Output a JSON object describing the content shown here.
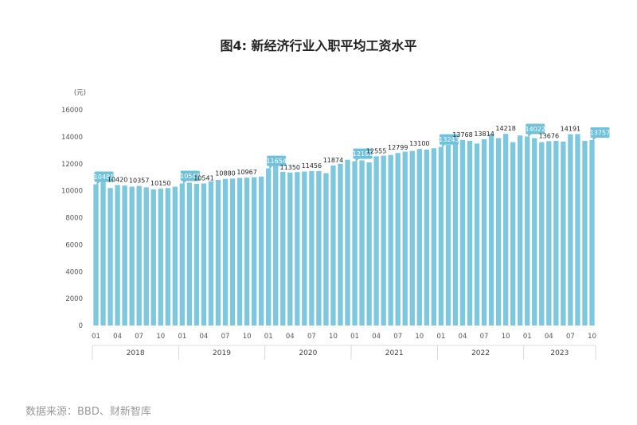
{
  "chart_data": {
    "type": "bar",
    "title": "图4: 新经济行业入职平均工资水平",
    "ylabel": "(元)",
    "xlabel": "",
    "ylim": [
      0,
      16000
    ],
    "yticks": [
      0,
      2000,
      4000,
      6000,
      8000,
      10000,
      12000,
      14000,
      16000
    ],
    "grid": false,
    "bar_color": "#7dc8de",
    "callout_color": "#6fc2da",
    "month_labels": [
      "01",
      "04",
      "07",
      "10"
    ],
    "years": [
      "2018",
      "2019",
      "2020",
      "2021",
      "2022",
      "2023"
    ],
    "categories": [
      "2018-01",
      "2018-02",
      "2018-03",
      "2018-04",
      "2018-05",
      "2018-06",
      "2018-07",
      "2018-08",
      "2018-09",
      "2018-10",
      "2018-11",
      "2018-12",
      "2019-01",
      "2019-02",
      "2019-03",
      "2019-04",
      "2019-05",
      "2019-06",
      "2019-07",
      "2019-08",
      "2019-09",
      "2019-10",
      "2019-11",
      "2019-12",
      "2020-01",
      "2020-02",
      "2020-03",
      "2020-04",
      "2020-05",
      "2020-06",
      "2020-07",
      "2020-08",
      "2020-09",
      "2020-10",
      "2020-11",
      "2020-12",
      "2021-01",
      "2021-02",
      "2021-03",
      "2021-04",
      "2021-05",
      "2021-06",
      "2021-07",
      "2021-08",
      "2021-09",
      "2021-10",
      "2021-11",
      "2021-12",
      "2022-01",
      "2022-02",
      "2022-03",
      "2022-04",
      "2022-05",
      "2022-06",
      "2022-07",
      "2022-08",
      "2022-09",
      "2022-10",
      "2022-11",
      "2022-12",
      "2023-01",
      "2023-02",
      "2023-03",
      "2023-04",
      "2023-05",
      "2023-06",
      "2023-07",
      "2023-08",
      "2023-09",
      "2023-10"
    ],
    "values": [
      10481,
      10700,
      10200,
      10420,
      10380,
      10300,
      10357,
      10250,
      10100,
      10150,
      10200,
      10300,
      10541,
      10600,
      10520,
      10541,
      10700,
      10800,
      10880,
      10900,
      10950,
      10967,
      11000,
      11050,
      11654,
      11900,
      11400,
      11350,
      11380,
      11420,
      11456,
      11450,
      11300,
      11874,
      12000,
      12300,
      12181,
      12250,
      12100,
      12555,
      12600,
      12650,
      12799,
      12900,
      12950,
      13100,
      13050,
      13150,
      13243,
      13400,
      13500,
      13768,
      13700,
      13500,
      13814,
      14200,
      13900,
      14218,
      13600,
      14100,
      14022,
      13900,
      13600,
      13676,
      13700,
      13650,
      14191,
      14200,
      13700,
      13757
    ],
    "data_labels": [
      {
        "index": 0,
        "value": 10481,
        "callout": true
      },
      {
        "index": 3,
        "value": 10420,
        "callout": false
      },
      {
        "index": 6,
        "value": 10357,
        "callout": false
      },
      {
        "index": 9,
        "value": 10150,
        "callout": false
      },
      {
        "index": 12,
        "value": 10541,
        "callout": true
      },
      {
        "index": 15,
        "value": 10541,
        "callout": false
      },
      {
        "index": 18,
        "value": 10880,
        "callout": false
      },
      {
        "index": 21,
        "value": 10967,
        "callout": false
      },
      {
        "index": 24,
        "value": 11654,
        "callout": true
      },
      {
        "index": 27,
        "value": 11350,
        "callout": false
      },
      {
        "index": 30,
        "value": 11456,
        "callout": false
      },
      {
        "index": 33,
        "value": 11874,
        "callout": false
      },
      {
        "index": 36,
        "value": 12181,
        "callout": true
      },
      {
        "index": 39,
        "value": 12555,
        "callout": false
      },
      {
        "index": 42,
        "value": 12799,
        "callout": false
      },
      {
        "index": 45,
        "value": 13100,
        "callout": false
      },
      {
        "index": 48,
        "value": 13243,
        "callout": true
      },
      {
        "index": 51,
        "value": 13768,
        "callout": false
      },
      {
        "index": 54,
        "value": 13814,
        "callout": false
      },
      {
        "index": 57,
        "value": 14218,
        "callout": false
      },
      {
        "index": 60,
        "value": 14022,
        "callout": true
      },
      {
        "index": 63,
        "value": 13676,
        "callout": false
      },
      {
        "index": 66,
        "value": 14191,
        "callout": false
      },
      {
        "index": 69,
        "value": 13757,
        "callout": true
      }
    ]
  },
  "source": "数据来源：BBD、财新智库"
}
